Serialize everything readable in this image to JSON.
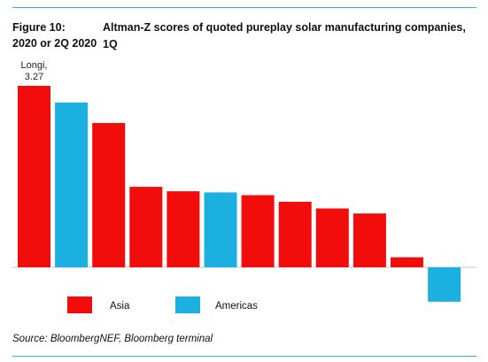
{
  "figure": {
    "number": "Figure 10:",
    "title_line1": "Altman-Z scores of quoted pureplay solar manufacturing companies, 1Q",
    "title_line2": "2020 or 2Q 2020"
  },
  "source": "Source: BloombergNEF, Bloomberg terminal",
  "colors": {
    "Asia": "#f20c0c",
    "Americas": "#1bb0e0",
    "rule": "#36b3cf"
  },
  "chart_data": {
    "type": "bar",
    "values": [
      3.27,
      2.97,
      2.6,
      1.45,
      1.37,
      1.35,
      1.3,
      1.18,
      1.06,
      0.97,
      0.18,
      -0.62
    ],
    "regions": [
      "Asia",
      "Americas",
      "Asia",
      "Asia",
      "Asia",
      "Americas",
      "Asia",
      "Asia",
      "Asia",
      "Asia",
      "Asia",
      "Americas"
    ],
    "annotation": {
      "index": 0,
      "name": "Longi,",
      "value": "3.27"
    },
    "legend": [
      {
        "label": "Asia",
        "color": "#f20c0c"
      },
      {
        "label": "Americas",
        "color": "#1bb0e0"
      }
    ],
    "legend_position": "bottom-left",
    "ylim": [
      -0.62,
      3.27
    ],
    "grid": false
  }
}
